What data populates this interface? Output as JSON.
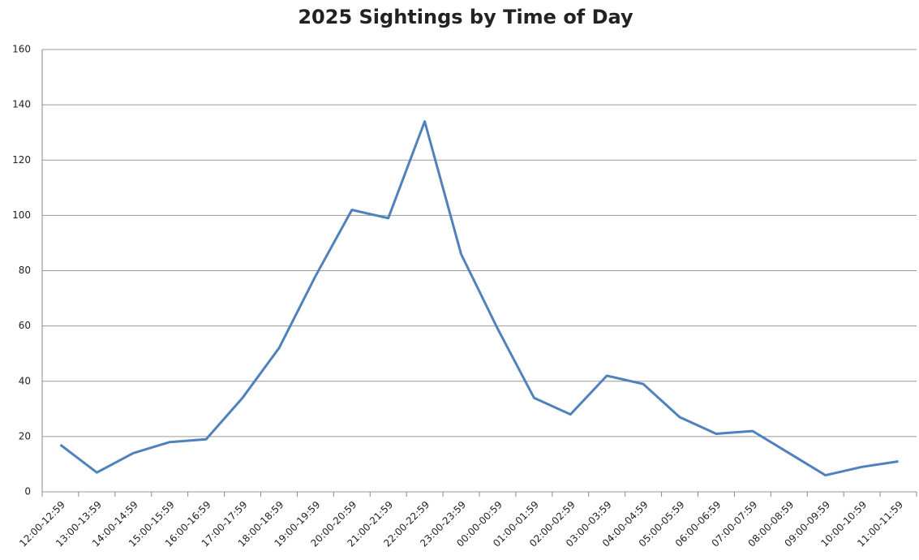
{
  "chart_data": {
    "type": "line",
    "title": "2025 Sightings by Time of Day",
    "categories": [
      "12:00-12:59",
      "13:00-13:59",
      "14:00-14:59",
      "15:00-15:59",
      "16:00-16:59",
      "17:00-17:59",
      "18:00-18:59",
      "19:00-19:59",
      "20:00-20:59",
      "21:00-21:59",
      "22:00-22:59",
      "23:00-23:59",
      "00:00-00:59",
      "01:00-01:59",
      "02:00-02:59",
      "03:00-03:59",
      "04:00-04:59",
      "05:00-05:59",
      "06:00-06:59",
      "07:00-07:59",
      "08:00-08:59",
      "09:00-09:59",
      "10:00-10:59",
      "11:00-11:59"
    ],
    "values": [
      17,
      7,
      14,
      18,
      19,
      34,
      52,
      78,
      102,
      99,
      134,
      86,
      59,
      34,
      28,
      42,
      39,
      27,
      21,
      22,
      14,
      6,
      9,
      11
    ],
    "color": "#4f81bd",
    "ylim": [
      0,
      160
    ],
    "yticks": [
      0,
      20,
      40,
      60,
      80,
      100,
      120,
      140,
      160
    ],
    "grid": true
  }
}
